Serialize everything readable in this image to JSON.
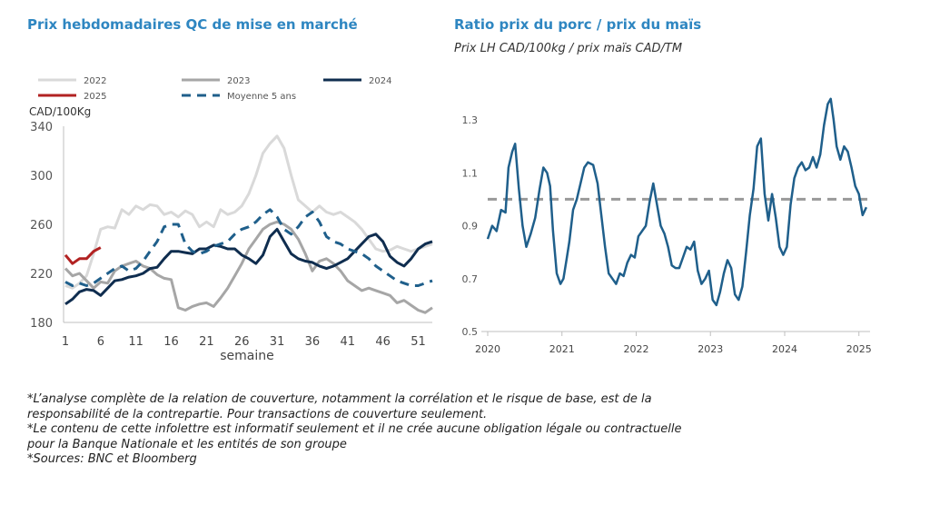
{
  "left_chart": {
    "title": "Prix hebdomadaires QC de mise en marché",
    "unit_label": "CAD/100Kg",
    "xlabel": "semaine"
  },
  "right_chart": {
    "title": "Ratio prix du porc / prix du maïs",
    "subtitle": "Prix LH CAD/100kg / prix maïs CAD/TM"
  },
  "notes": [
    "*L’analyse complète de la relation de couverture, notamment la corrélation et le risque de base, est de la",
    "responsabilité de la contrepartie. Pour transactions de couverture seulement.",
    "*Le contenu de cette infolettre est informatif seulement et il ne crée aucune obligation légale ou contractuelle",
    "pour la Banque Nationale et les entités de son groupe",
    "*Sources: BNC et Bloomberg"
  ],
  "chart_data": [
    {
      "type": "line",
      "title": "Prix hebdomadaires QC de mise en marché",
      "xlabel": "semaine",
      "ylabel": "CAD/100Kg",
      "xlim": [
        1,
        53
      ],
      "ylim": [
        180,
        340
      ],
      "xticks": [
        1,
        6,
        11,
        16,
        21,
        26,
        31,
        36,
        41,
        46,
        51
      ],
      "yticks": [
        180,
        220,
        260,
        300,
        340
      ],
      "grid": false,
      "legend_position": "top",
      "series": [
        {
          "name": "2022",
          "color": "#d9d9d9",
          "style": "solid",
          "width": 3,
          "x": [
            1,
            2,
            3,
            4,
            5,
            6,
            7,
            8,
            9,
            10,
            11,
            12,
            13,
            14,
            15,
            16,
            17,
            18,
            19,
            20,
            21,
            22,
            23,
            24,
            25,
            26,
            27,
            28,
            29,
            30,
            31,
            32,
            33,
            34,
            35,
            36,
            37,
            38,
            39,
            40,
            41,
            42,
            43,
            44,
            45,
            46,
            47,
            48,
            49,
            50,
            51,
            52,
            53
          ],
          "y": [
            210,
            208,
            212,
            218,
            236,
            256,
            258,
            257,
            272,
            268,
            275,
            272,
            276,
            275,
            268,
            270,
            266,
            271,
            268,
            258,
            262,
            258,
            272,
            268,
            270,
            275,
            285,
            300,
            318,
            326,
            332,
            322,
            300,
            280,
            275,
            270,
            275,
            270,
            268,
            270,
            266,
            262,
            256,
            248,
            240,
            238,
            239,
            242,
            240,
            238,
            240,
            242,
            244
          ]
        },
        {
          "name": "2023",
          "color": "#a6a6a6",
          "style": "solid",
          "width": 3,
          "x": [
            1,
            2,
            3,
            4,
            5,
            6,
            7,
            8,
            9,
            10,
            11,
            12,
            13,
            14,
            15,
            16,
            17,
            18,
            19,
            20,
            21,
            22,
            23,
            24,
            25,
            26,
            27,
            28,
            29,
            30,
            31,
            32,
            33,
            34,
            35,
            36,
            37,
            38,
            39,
            40,
            41,
            42,
            43,
            44,
            45,
            46,
            47,
            48,
            49,
            50,
            51,
            52,
            53
          ],
          "y": [
            224,
            218,
            220,
            214,
            208,
            213,
            212,
            222,
            226,
            228,
            230,
            226,
            224,
            219,
            216,
            215,
            192,
            190,
            193,
            195,
            196,
            193,
            200,
            208,
            218,
            228,
            240,
            248,
            256,
            260,
            262,
            260,
            256,
            248,
            236,
            222,
            230,
            232,
            228,
            222,
            214,
            210,
            206,
            208,
            206,
            204,
            202,
            196,
            198,
            194,
            190,
            188,
            192
          ]
        },
        {
          "name": "2024",
          "color": "#0f2d4f",
          "style": "solid",
          "width": 3,
          "x": [
            1,
            2,
            3,
            4,
            5,
            6,
            7,
            8,
            9,
            10,
            11,
            12,
            13,
            14,
            15,
            16,
            17,
            18,
            19,
            20,
            21,
            22,
            23,
            24,
            25,
            26,
            27,
            28,
            29,
            30,
            31,
            32,
            33,
            34,
            35,
            36,
            37,
            38,
            39,
            40,
            41,
            42,
            43,
            44,
            45,
            46,
            47,
            48,
            49,
            50,
            51,
            52,
            53
          ],
          "y": [
            195,
            199,
            205,
            207,
            206,
            202,
            208,
            214,
            215,
            217,
            218,
            220,
            224,
            225,
            232,
            238,
            238,
            237,
            236,
            240,
            240,
            243,
            242,
            240,
            240,
            235,
            232,
            228,
            235,
            250,
            256,
            246,
            236,
            232,
            230,
            229,
            226,
            224,
            226,
            229,
            232,
            238,
            244,
            250,
            252,
            246,
            234,
            229,
            226,
            232,
            240,
            244,
            246
          ]
        },
        {
          "name": "2025",
          "color": "#b22222",
          "style": "solid",
          "width": 3,
          "x": [
            1,
            2,
            3,
            4,
            5,
            6
          ],
          "y": [
            235,
            228,
            232,
            232,
            238,
            241
          ]
        },
        {
          "name": "Moyenne 5 ans",
          "color": "#1f5f8b",
          "style": "dashed",
          "width": 3,
          "x": [
            1,
            2,
            3,
            4,
            5,
            6,
            7,
            8,
            9,
            10,
            11,
            12,
            13,
            14,
            15,
            16,
            17,
            18,
            19,
            20,
            21,
            22,
            23,
            24,
            25,
            26,
            27,
            28,
            29,
            30,
            31,
            32,
            33,
            34,
            35,
            36,
            37,
            38,
            39,
            40,
            41,
            42,
            43,
            44,
            45,
            46,
            47,
            48,
            49,
            50,
            51,
            52,
            53
          ],
          "y": [
            213,
            210,
            212,
            210,
            212,
            216,
            220,
            224,
            226,
            222,
            224,
            230,
            238,
            246,
            258,
            260,
            260,
            244,
            238,
            236,
            238,
            242,
            244,
            246,
            252,
            256,
            258,
            262,
            268,
            272,
            266,
            256,
            252,
            258,
            266,
            270,
            262,
            250,
            246,
            244,
            240,
            238,
            236,
            232,
            226,
            222,
            218,
            214,
            212,
            210,
            210,
            212,
            214
          ]
        }
      ]
    },
    {
      "type": "line",
      "title": "Ratio prix du porc / prix du maïs",
      "subtitle": "Prix LH CAD/100kg / prix maïs CAD/TM",
      "xlim": [
        2020.0,
        2025.15
      ],
      "ylim": [
        0.5,
        1.4
      ],
      "xticks": [
        2020,
        2021,
        2022,
        2023,
        2024,
        2025
      ],
      "yticks": [
        0.5,
        0.7,
        0.9,
        1.1,
        1.3
      ],
      "grid": false,
      "series": [
        {
          "name": "",
          "color": "#1f5f8b",
          "style": "solid",
          "width": 2.5,
          "x": [
            2020.0,
            2020.06,
            2020.12,
            2020.18,
            2020.24,
            2020.28,
            2020.33,
            2020.37,
            2020.42,
            2020.47,
            2020.52,
            2020.58,
            2020.64,
            2020.7,
            2020.75,
            2020.8,
            2020.84,
            2020.88,
            2020.93,
            2020.98,
            2021.02,
            2021.06,
            2021.1,
            2021.15,
            2021.2,
            2021.25,
            2021.3,
            2021.35,
            2021.42,
            2021.48,
            2021.53,
            2021.58,
            2021.63,
            2021.68,
            2021.73,
            2021.78,
            2021.83,
            2021.88,
            2021.93,
            2021.98,
            2022.03,
            2022.08,
            2022.13,
            2022.18,
            2022.23,
            2022.28,
            2022.33,
            2022.38,
            2022.43,
            2022.48,
            2022.53,
            2022.58,
            2022.63,
            2022.68,
            2022.73,
            2022.78,
            2022.83,
            2022.88,
            2022.93,
            2022.98,
            2023.03,
            2023.08,
            2023.13,
            2023.18,
            2023.23,
            2023.28,
            2023.33,
            2023.38,
            2023.43,
            2023.48,
            2023.53,
            2023.58,
            2023.63,
            2023.68,
            2023.73,
            2023.78,
            2023.83,
            2023.88,
            2023.93,
            2023.98,
            2024.03,
            2024.08,
            2024.13,
            2024.18,
            2024.23,
            2024.28,
            2024.33,
            2024.38,
            2024.43,
            2024.48,
            2024.53,
            2024.58,
            2024.62,
            2024.66,
            2024.7,
            2024.75,
            2024.8,
            2024.85,
            2024.9,
            2024.95,
            2025.0,
            2025.05,
            2025.1
          ],
          "y": [
            0.85,
            0.9,
            0.88,
            0.96,
            0.95,
            1.12,
            1.18,
            1.21,
            1.04,
            0.9,
            0.82,
            0.87,
            0.93,
            1.04,
            1.12,
            1.1,
            1.05,
            0.88,
            0.72,
            0.68,
            0.7,
            0.77,
            0.84,
            0.96,
            1.0,
            1.06,
            1.12,
            1.14,
            1.13,
            1.06,
            0.94,
            0.82,
            0.72,
            0.7,
            0.68,
            0.72,
            0.71,
            0.76,
            0.79,
            0.78,
            0.86,
            0.88,
            0.9,
            0.99,
            1.06,
            0.98,
            0.9,
            0.87,
            0.82,
            0.75,
            0.74,
            0.74,
            0.78,
            0.82,
            0.81,
            0.84,
            0.73,
            0.68,
            0.7,
            0.73,
            0.62,
            0.6,
            0.65,
            0.72,
            0.77,
            0.74,
            0.64,
            0.62,
            0.67,
            0.8,
            0.94,
            1.04,
            1.2,
            1.23,
            1.02,
            0.92,
            1.02,
            0.93,
            0.82,
            0.79,
            0.82,
            0.98,
            1.08,
            1.12,
            1.14,
            1.11,
            1.12,
            1.16,
            1.12,
            1.17,
            1.28,
            1.36,
            1.38,
            1.3,
            1.2,
            1.15,
            1.2,
            1.18,
            1.12,
            1.05,
            1.02,
            0.94,
            0.97
          ]
        },
        {
          "name": "",
          "color": "#999999",
          "style": "dashed",
          "width": 3,
          "x": [
            2020.0,
            2025.15
          ],
          "y": [
            1.0,
            1.0
          ]
        }
      ]
    }
  ]
}
